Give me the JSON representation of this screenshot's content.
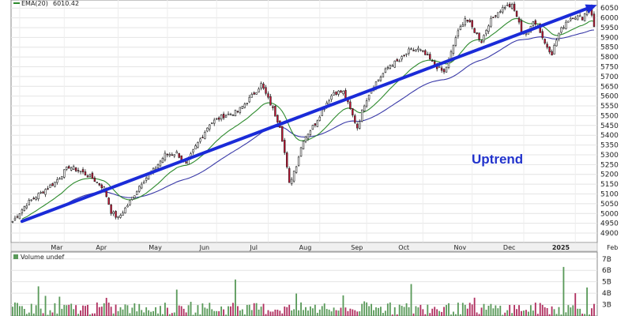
{
  "chart_data": [
    {
      "type": "candlestick",
      "legend": [
        {
          "label": "EMA(20)",
          "value": "6010.42",
          "color": "#2e8b2e"
        }
      ],
      "annotation": "Uptrend",
      "y_ticks": [
        "4900",
        "4950",
        "5000",
        "5050",
        "5100",
        "5150",
        "5200",
        "5250",
        "5300",
        "5350",
        "5400",
        "5450",
        "5500",
        "5550",
        "5600",
        "5650",
        "5700",
        "5750",
        "5800",
        "5850",
        "5900",
        "5950",
        "6000",
        "6050"
      ],
      "ylim": [
        4880,
        6075
      ],
      "x_ticks": [
        {
          "label": "Mar",
          "bold": false
        },
        {
          "label": "Apr",
          "bold": false
        },
        {
          "label": "May",
          "bold": false
        },
        {
          "label": "Jun",
          "bold": false
        },
        {
          "label": "Jul",
          "bold": false
        },
        {
          "label": "Aug",
          "bold": false
        },
        {
          "label": "Sep",
          "bold": false
        },
        {
          "label": "Oct",
          "bold": false
        },
        {
          "label": "Nov",
          "bold": false
        },
        {
          "label": "Dec",
          "bold": false
        },
        {
          "label": "2025",
          "bold": true
        },
        {
          "label": "Feb",
          "bold": false
        }
      ],
      "close_anchors": [
        [
          0,
          4960
        ],
        [
          6,
          5050
        ],
        [
          12,
          5105
        ],
        [
          18,
          5160
        ],
        [
          24,
          5240
        ],
        [
          29,
          5215
        ],
        [
          34,
          5180
        ],
        [
          39,
          5130
        ],
        [
          42,
          5010
        ],
        [
          45,
          4975
        ],
        [
          50,
          5060
        ],
        [
          55,
          5160
        ],
        [
          60,
          5220
        ],
        [
          65,
          5300
        ],
        [
          70,
          5310
        ],
        [
          74,
          5250
        ],
        [
          78,
          5340
        ],
        [
          84,
          5460
        ],
        [
          90,
          5500
        ],
        [
          96,
          5520
        ],
        [
          102,
          5600
        ],
        [
          106,
          5660
        ],
        [
          110,
          5560
        ],
        [
          114,
          5450
        ],
        [
          116,
          5310
        ],
        [
          118,
          5150
        ],
        [
          121,
          5250
        ],
        [
          124,
          5380
        ],
        [
          129,
          5460
        ],
        [
          133,
          5550
        ],
        [
          137,
          5620
        ],
        [
          141,
          5620
        ],
        [
          145,
          5500
        ],
        [
          147,
          5440
        ],
        [
          150,
          5560
        ],
        [
          153,
          5640
        ],
        [
          157,
          5700
        ],
        [
          161,
          5760
        ],
        [
          165,
          5780
        ],
        [
          169,
          5830
        ],
        [
          173,
          5840
        ],
        [
          177,
          5800
        ],
        [
          180,
          5760
        ],
        [
          184,
          5720
        ],
        [
          186,
          5780
        ],
        [
          189,
          5900
        ],
        [
          193,
          6000
        ],
        [
          196,
          5950
        ],
        [
          200,
          5880
        ],
        [
          203,
          5970
        ],
        [
          206,
          6020
        ],
        [
          210,
          6060
        ],
        [
          213,
          6060
        ],
        [
          215,
          6010
        ],
        [
          217,
          5930
        ],
        [
          220,
          5920
        ],
        [
          222,
          5990
        ],
        [
          224,
          5960
        ],
        [
          227,
          5870
        ],
        [
          230,
          5820
        ],
        [
          233,
          5920
        ],
        [
          236,
          5980
        ],
        [
          239,
          6010
        ],
        [
          243,
          6000
        ],
        [
          246,
          6060
        ],
        [
          247,
          6020
        ],
        [
          248,
          5950
        ]
      ],
      "trendline": {
        "from": [
          4,
          4960
        ],
        "to": [
          248,
          6060
        ],
        "color": "#1a2bd8"
      },
      "moving_average_colors": {
        "ema_short": "#2e8b2e",
        "ma_long": "#3a3aa8"
      },
      "up_color": "#ffffff",
      "down_color": "#cc1133"
    },
    {
      "type": "bar",
      "legend": [
        {
          "label": "Volume undef"
        }
      ],
      "y_ticks": [
        "7B",
        "6B",
        "5B",
        "4B",
        "3B"
      ],
      "ylim": [
        2,
        7.4
      ],
      "up_color": "#5a9a5a",
      "down_color": "#b03060",
      "spikes": [
        [
          11,
          4.6
        ],
        [
          95,
          5.2
        ],
        [
          170,
          4.8
        ],
        [
          235,
          6.3
        ],
        [
          240,
          4.0
        ],
        [
          245,
          4.5
        ]
      ]
    }
  ]
}
